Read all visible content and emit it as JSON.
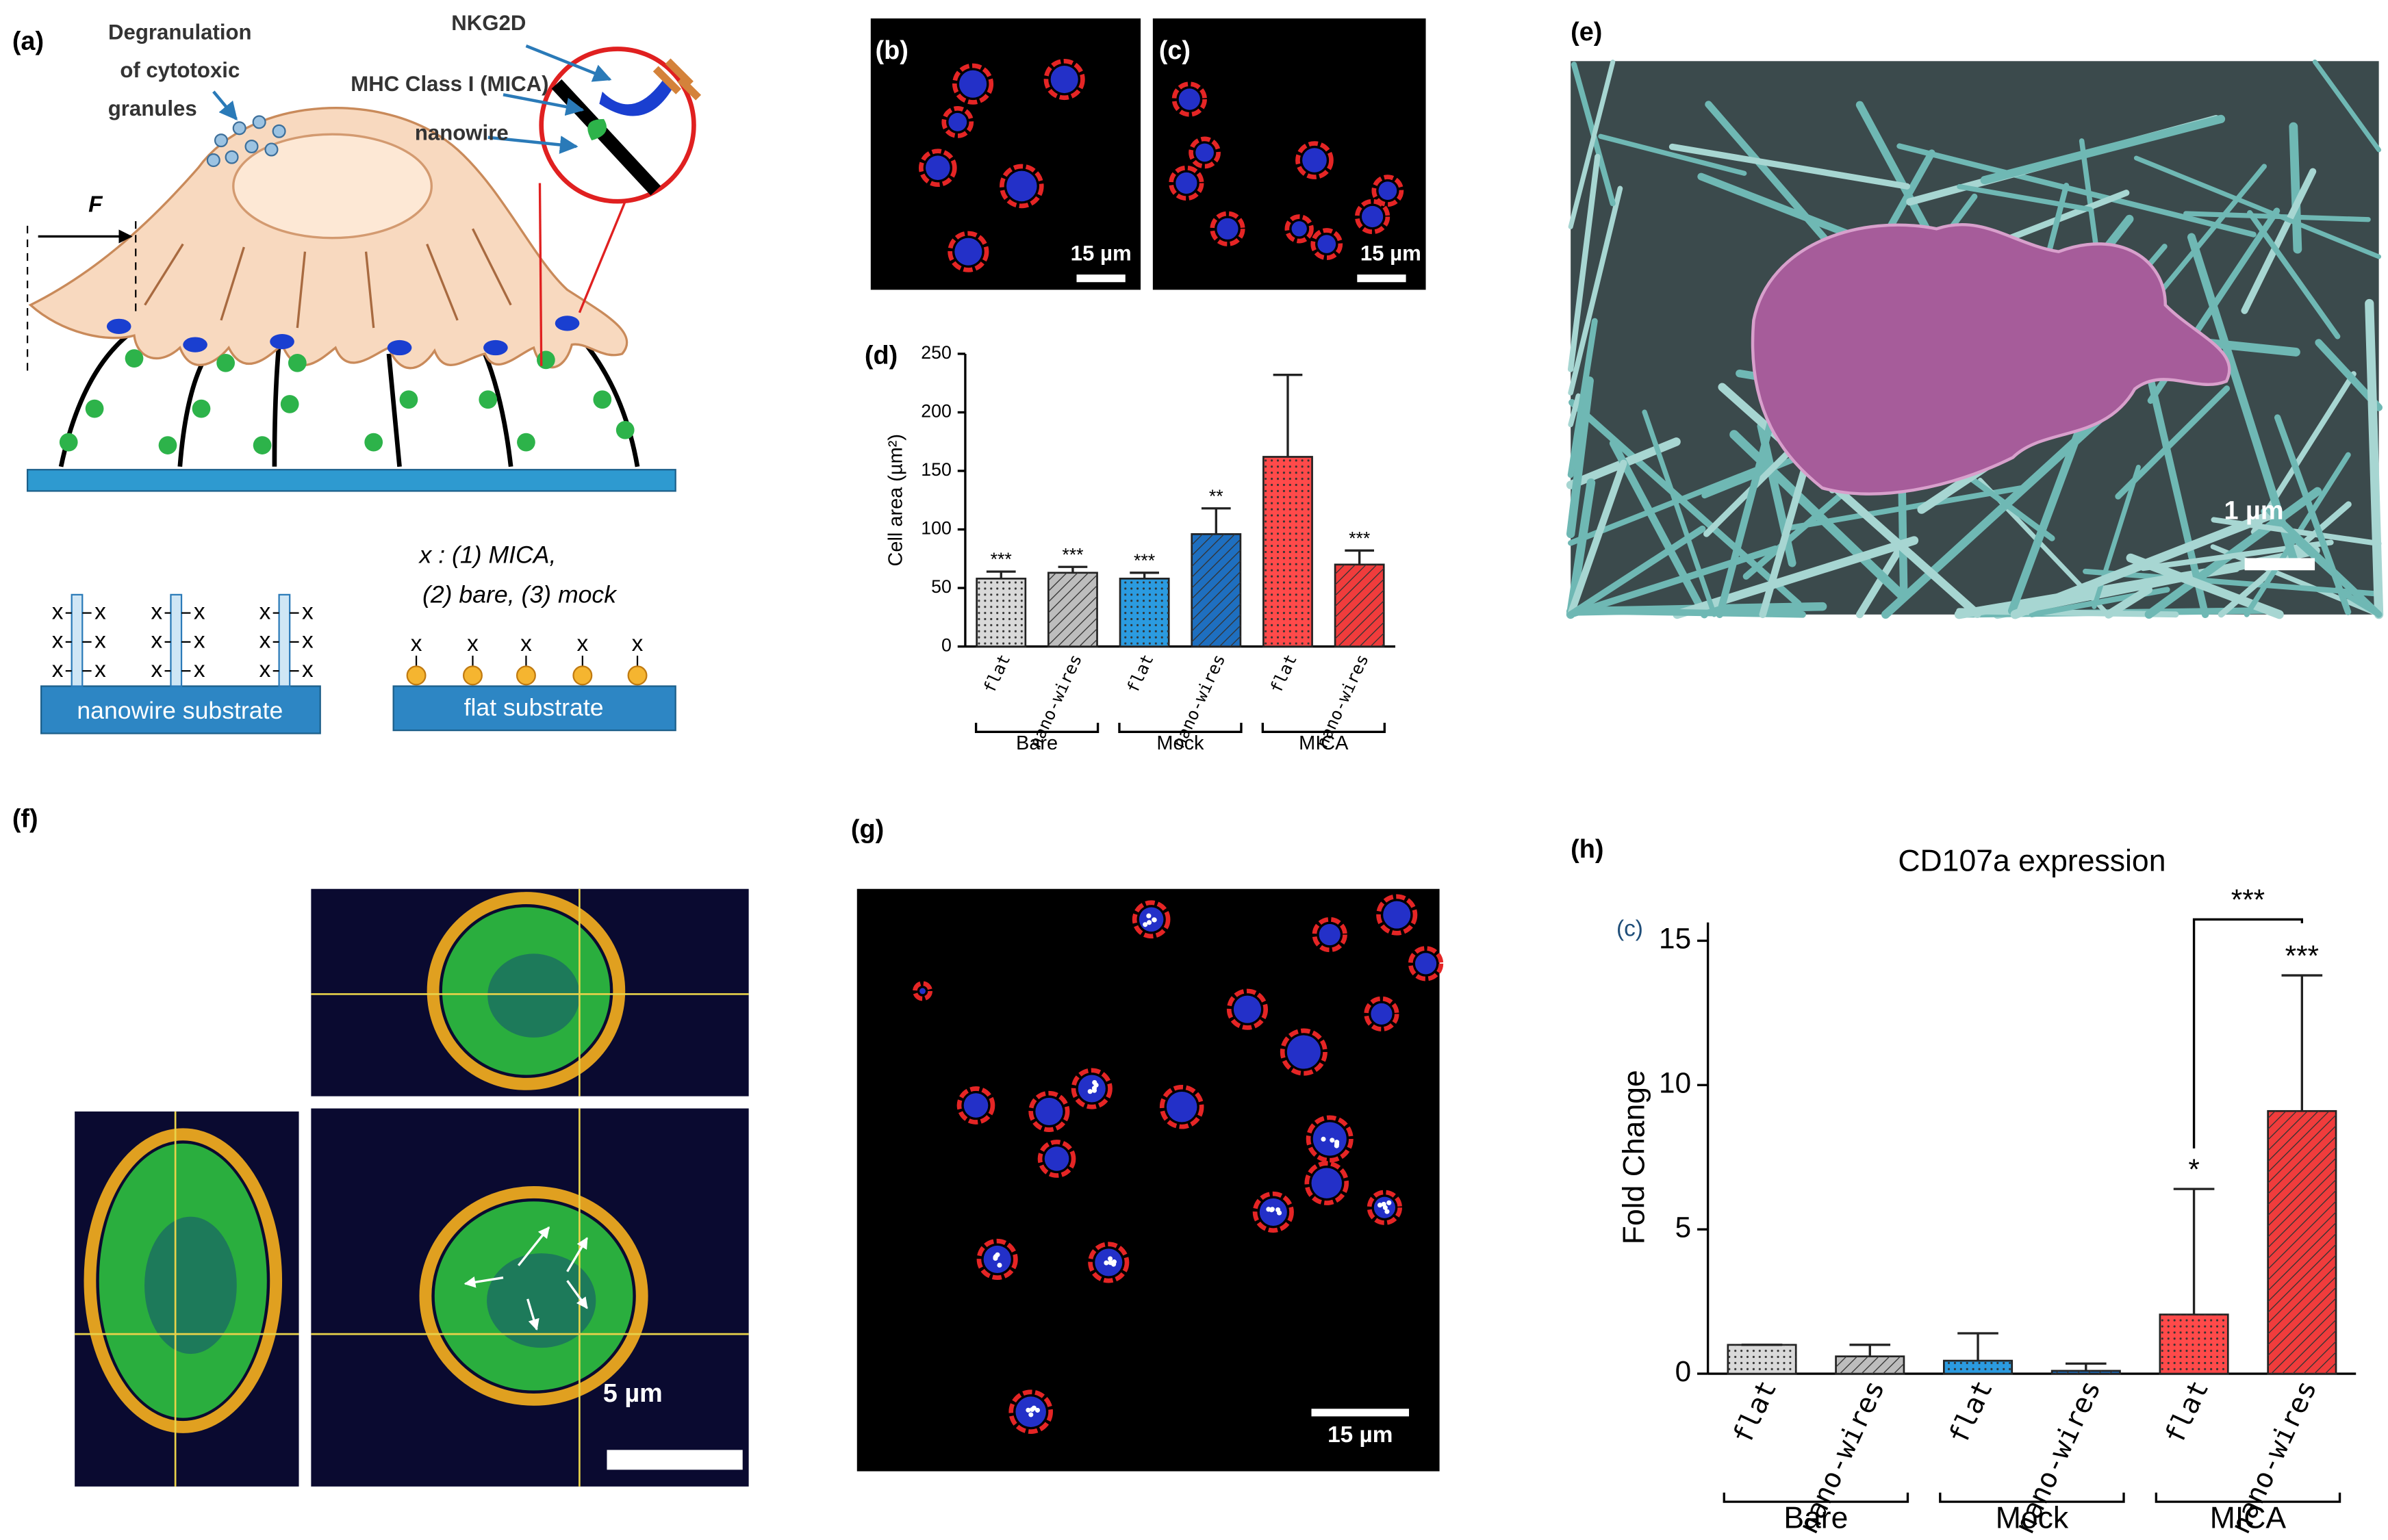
{
  "figure": {
    "panel_labels": {
      "a": "(a)",
      "b": "(b)",
      "c": "(c)",
      "e": "(e)",
      "f": "(f)",
      "g": "(g)",
      "h": "(h)"
    },
    "a": {
      "degranulation": [
        "Degranulation",
        "of cytotoxic",
        "granules"
      ],
      "nkg2d": "NKG2D",
      "mhc": "MHC Class I (MICA)",
      "nanowire": "nanowire",
      "force": "F",
      "x_mark": "x",
      "legend_lines": [
        "x : (1) MICA,",
        "(2) bare, (3) mock"
      ],
      "nanowire_substrate": "nanowire  substrate",
      "flat_substrate": "flat substrate"
    },
    "scale_bars": {
      "b": "15 µm",
      "c": "15 µm",
      "e": "1 µm",
      "f": "5 µm",
      "g": "15 µm"
    },
    "h_inset_label": "(c)"
  },
  "chart_data": [
    {
      "type": "bar",
      "panel_label": "(d)",
      "ylabel": "Cell area (µm²)",
      "categories": [
        "flat",
        "nano-wires",
        "flat",
        "nano-wires",
        "flat",
        "nano-wires"
      ],
      "groups": [
        "Bare",
        "Mock",
        "MICA"
      ],
      "values": [
        58,
        63,
        58,
        96,
        162,
        70
      ],
      "errors": [
        6,
        5,
        5,
        22,
        70,
        12
      ],
      "annotations": [
        "***",
        "***",
        "***",
        "**",
        null,
        "***"
      ],
      "colors": [
        "#d9d9d9",
        "#bdbdbd",
        "#2b9be0",
        "#1e6fc0",
        "#ff4a4a",
        "#f03c3c"
      ],
      "patterns": [
        "dots",
        "hatch",
        "dots",
        "hatch",
        "dots",
        "hatch"
      ],
      "ylim": [
        0,
        250
      ],
      "yticks": [
        0,
        50,
        100,
        150,
        200,
        250
      ]
    },
    {
      "type": "bar",
      "title": "CD107a expression",
      "ylabel": "Fold Change",
      "categories": [
        "flat",
        "nano-wires",
        "flat",
        "nano-wires",
        "flat",
        "nano-wires"
      ],
      "groups": [
        "Bare",
        "Mock",
        "MICA"
      ],
      "values": [
        1,
        0.6,
        0.45,
        0.1,
        2.05,
        9.1
      ],
      "errors": [
        0,
        0.4,
        0.95,
        0.25,
        4.35,
        4.7
      ],
      "annotations": [
        null,
        null,
        null,
        null,
        "*",
        "***"
      ],
      "comparison": {
        "label": "***",
        "bars": [
          4,
          5
        ]
      },
      "colors": [
        "#d9d9d9",
        "#bdbdbd",
        "#2b9be0",
        "#1e6fc0",
        "#ff4a4a",
        "#f03c3c"
      ],
      "patterns": [
        "dots",
        "hatch",
        "dots",
        "hatch",
        "dots",
        "hatch"
      ],
      "ylim": [
        0,
        15
      ],
      "yticks": [
        0,
        5,
        10,
        15
      ]
    }
  ]
}
